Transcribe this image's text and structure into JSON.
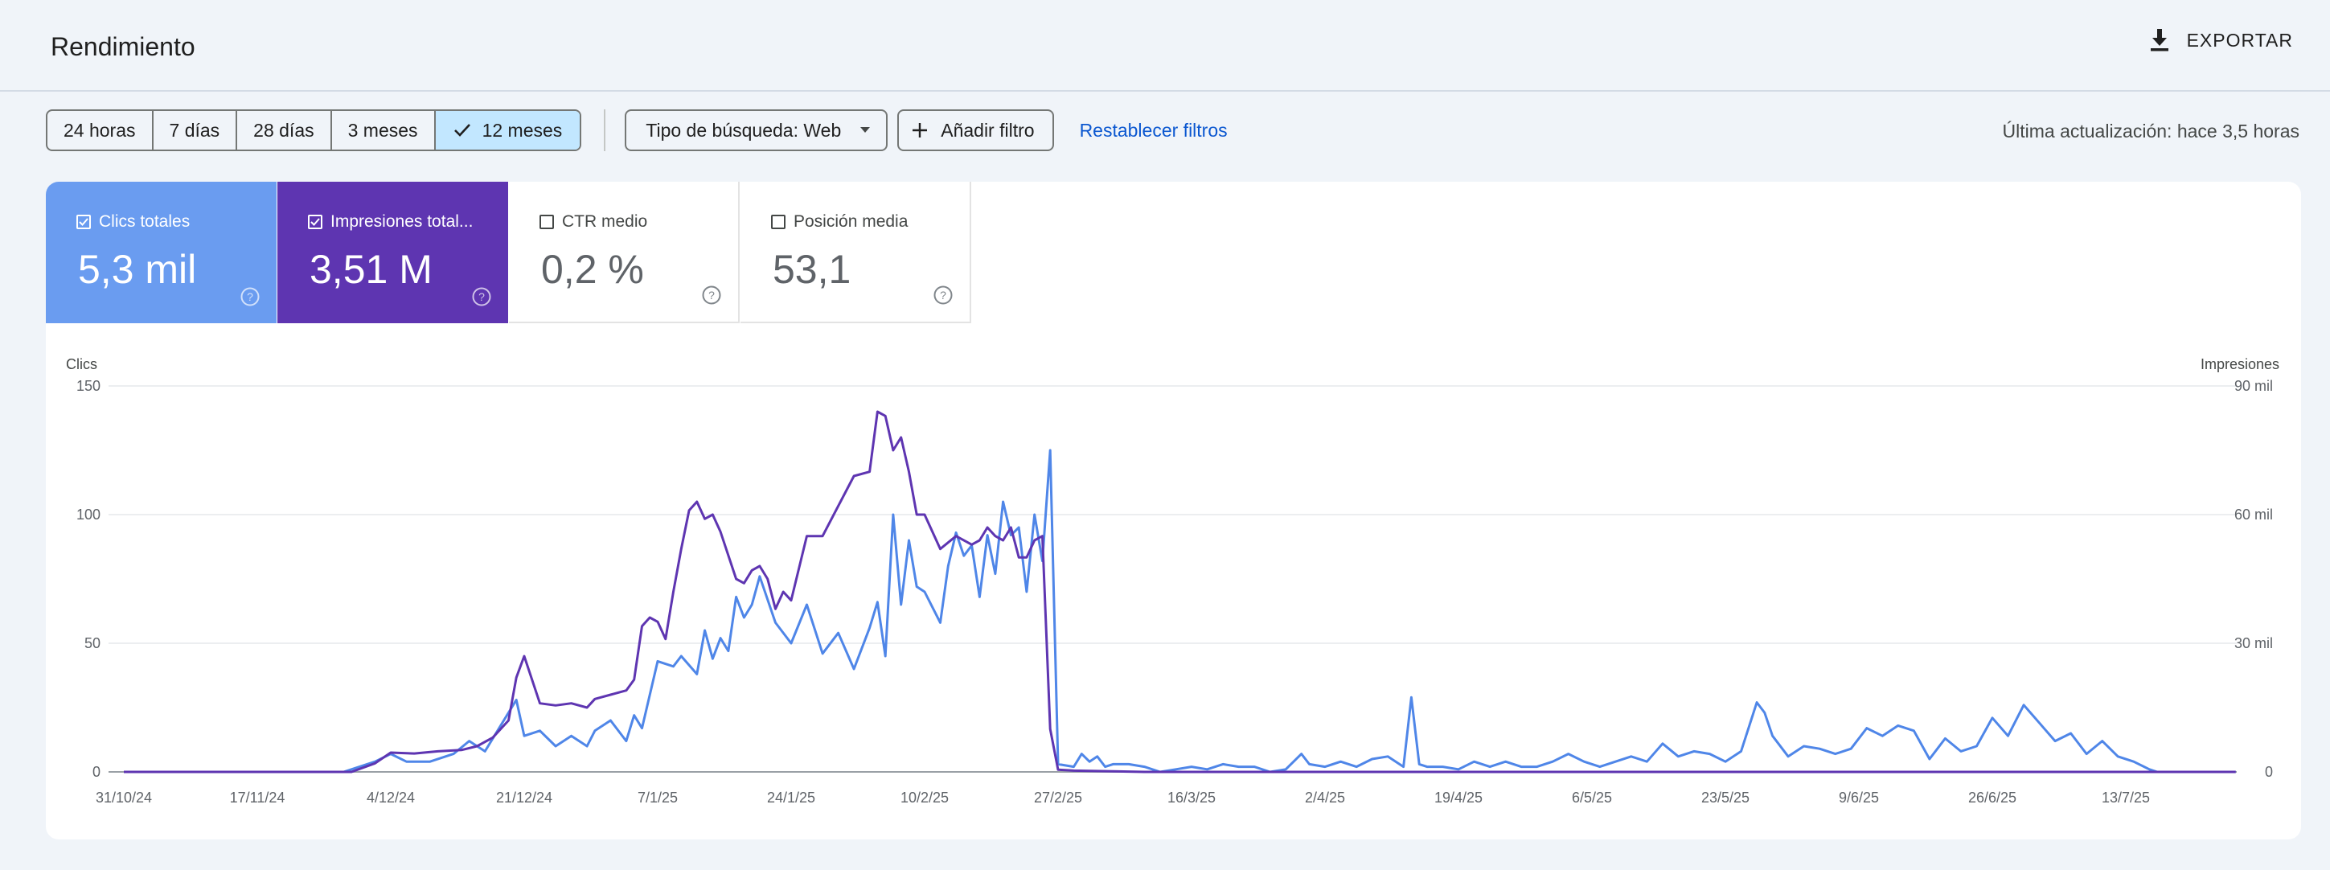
{
  "header": {
    "title": "Rendimiento",
    "export_label": "EXPORTAR"
  },
  "toolbar": {
    "date_ranges": [
      "24 horas",
      "7 días",
      "28 días",
      "3 meses",
      "12 meses"
    ],
    "selected_range": "12 meses",
    "search_type": "Tipo de búsqueda: Web",
    "add_filter": "Añadir filtro",
    "reset_filters": "Restablecer filtros",
    "last_update": "Última actualización: hace 3,5 horas"
  },
  "metrics": [
    {
      "label": "Clics totales",
      "value": "5,3 mil",
      "checked": true
    },
    {
      "label": "Impresiones total...",
      "value": "3,51 M",
      "checked": true
    },
    {
      "label": "CTR medio",
      "value": "0,2 %",
      "checked": false
    },
    {
      "label": "Posición media",
      "value": "53,1",
      "checked": false
    }
  ],
  "colors": {
    "clicks": "#4f86e8",
    "impressions": "#5e35b1",
    "accent_link": "#0b57d0",
    "selected_chip": "#c2e7ff"
  },
  "chart_data": {
    "type": "line",
    "left_axis_title": "Clics",
    "right_axis_title": "Impresiones",
    "left_ticks": [
      "150",
      "100",
      "50",
      "0"
    ],
    "right_ticks": [
      "90 mil",
      "60 mil",
      "30 mil",
      "0"
    ],
    "left_ylim": [
      0,
      150
    ],
    "right_ylim": [
      0,
      90000
    ],
    "x_tick_labels": [
      "31/10/24",
      "17/11/24",
      "4/12/24",
      "21/12/24",
      "7/1/25",
      "24/1/25",
      "10/2/25",
      "27/2/25",
      "16/3/25",
      "2/4/25",
      "19/4/25",
      "6/5/25",
      "23/5/25",
      "9/6/25",
      "26/6/25",
      "13/7/25"
    ],
    "grid": true,
    "series": [
      {
        "name": "Clics",
        "axis": "left",
        "color": "#4f86e8",
        "points": [
          [
            "31/10/24",
            0
          ],
          [
            "17/11/24",
            0
          ],
          [
            "28/11/24",
            0
          ],
          [
            "2/12/24",
            4
          ],
          [
            "4/12/24",
            7
          ],
          [
            "6/12/24",
            4
          ],
          [
            "9/12/24",
            4
          ],
          [
            "12/12/24",
            7
          ],
          [
            "14/12/24",
            12
          ],
          [
            "16/12/24",
            8
          ],
          [
            "18/12/24",
            18
          ],
          [
            "20/12/24",
            28
          ],
          [
            "21/12/24",
            14
          ],
          [
            "23/12/24",
            16
          ],
          [
            "25/12/24",
            10
          ],
          [
            "27/12/24",
            14
          ],
          [
            "29/12/24",
            10
          ],
          [
            "30/12/24",
            16
          ],
          [
            "1/1/25",
            20
          ],
          [
            "3/1/25",
            12
          ],
          [
            "4/1/25",
            22
          ],
          [
            "5/1/25",
            17
          ],
          [
            "7/1/25",
            43
          ],
          [
            "9/1/25",
            41
          ],
          [
            "10/1/25",
            45
          ],
          [
            "12/1/25",
            38
          ],
          [
            "13/1/25",
            55
          ],
          [
            "14/1/25",
            44
          ],
          [
            "15/1/25",
            52
          ],
          [
            "16/1/25",
            47
          ],
          [
            "17/1/25",
            68
          ],
          [
            "18/1/25",
            60
          ],
          [
            "19/1/25",
            65
          ],
          [
            "20/1/25",
            76
          ],
          [
            "22/1/25",
            58
          ],
          [
            "24/1/25",
            50
          ],
          [
            "26/1/25",
            65
          ],
          [
            "28/1/25",
            46
          ],
          [
            "30/1/25",
            54
          ],
          [
            "1/2/25",
            40
          ],
          [
            "3/2/25",
            56
          ],
          [
            "4/2/25",
            66
          ],
          [
            "5/2/25",
            45
          ],
          [
            "6/2/25",
            100
          ],
          [
            "7/2/25",
            65
          ],
          [
            "8/2/25",
            90
          ],
          [
            "9/2/25",
            72
          ],
          [
            "10/2/25",
            70
          ],
          [
            "12/2/25",
            58
          ],
          [
            "13/2/25",
            80
          ],
          [
            "14/2/25",
            93
          ],
          [
            "15/2/25",
            84
          ],
          [
            "16/2/25",
            88
          ],
          [
            "17/2/25",
            68
          ],
          [
            "18/2/25",
            92
          ],
          [
            "19/2/25",
            77
          ],
          [
            "20/2/25",
            105
          ],
          [
            "21/2/25",
            92
          ],
          [
            "22/2/25",
            95
          ],
          [
            "23/2/25",
            70
          ],
          [
            "24/2/25",
            100
          ],
          [
            "25/2/25",
            82
          ],
          [
            "26/2/25",
            125
          ],
          [
            "27/2/25",
            3
          ],
          [
            "1/3/25",
            2
          ],
          [
            "2/3/25",
            7
          ],
          [
            "3/3/25",
            4
          ],
          [
            "4/3/25",
            6
          ],
          [
            "5/3/25",
            2
          ],
          [
            "6/3/25",
            3
          ],
          [
            "8/3/25",
            3
          ],
          [
            "10/3/25",
            2
          ],
          [
            "12/3/25",
            0
          ],
          [
            "14/3/25",
            1
          ],
          [
            "16/3/25",
            2
          ],
          [
            "18/3/25",
            1
          ],
          [
            "20/3/25",
            3
          ],
          [
            "22/3/25",
            2
          ],
          [
            "24/3/25",
            2
          ],
          [
            "26/3/25",
            0
          ],
          [
            "28/3/25",
            1
          ],
          [
            "30/3/25",
            7
          ],
          [
            "31/3/25",
            3
          ],
          [
            "2/4/25",
            2
          ],
          [
            "4/4/25",
            4
          ],
          [
            "6/4/25",
            2
          ],
          [
            "8/4/25",
            5
          ],
          [
            "10/4/25",
            6
          ],
          [
            "12/4/25",
            2
          ],
          [
            "13/4/25",
            29
          ],
          [
            "14/4/25",
            3
          ],
          [
            "15/4/25",
            2
          ],
          [
            "17/4/25",
            2
          ],
          [
            "19/4/25",
            1
          ],
          [
            "21/4/25",
            4
          ],
          [
            "23/4/25",
            2
          ],
          [
            "25/4/25",
            4
          ],
          [
            "27/4/25",
            2
          ],
          [
            "29/4/25",
            2
          ],
          [
            "1/5/25",
            4
          ],
          [
            "3/5/25",
            7
          ],
          [
            "5/5/25",
            4
          ],
          [
            "7/5/25",
            2
          ],
          [
            "9/5/25",
            4
          ],
          [
            "11/5/25",
            6
          ],
          [
            "13/5/25",
            4
          ],
          [
            "15/5/25",
            11
          ],
          [
            "17/5/25",
            6
          ],
          [
            "19/5/25",
            8
          ],
          [
            "21/5/25",
            7
          ],
          [
            "23/5/25",
            4
          ],
          [
            "25/5/25",
            8
          ],
          [
            "27/5/25",
            27
          ],
          [
            "28/5/25",
            23
          ],
          [
            "29/5/25",
            14
          ],
          [
            "31/5/25",
            6
          ],
          [
            "2/6/25",
            10
          ],
          [
            "4/6/25",
            9
          ],
          [
            "6/6/25",
            7
          ],
          [
            "8/6/25",
            9
          ],
          [
            "10/6/25",
            17
          ],
          [
            "12/6/25",
            14
          ],
          [
            "14/6/25",
            18
          ],
          [
            "16/6/25",
            16
          ],
          [
            "18/6/25",
            5
          ],
          [
            "20/6/25",
            13
          ],
          [
            "22/6/25",
            8
          ],
          [
            "24/6/25",
            10
          ],
          [
            "26/6/25",
            21
          ],
          [
            "28/6/25",
            14
          ],
          [
            "30/6/25",
            26
          ],
          [
            "2/7/25",
            19
          ],
          [
            "4/7/25",
            12
          ],
          [
            "6/7/25",
            15
          ],
          [
            "8/7/25",
            7
          ],
          [
            "10/7/25",
            12
          ],
          [
            "12/7/25",
            6
          ],
          [
            "14/7/25",
            4
          ],
          [
            "16/7/25",
            1
          ],
          [
            "17/7/25",
            0
          ],
          [
            "27/7/25",
            0
          ]
        ]
      },
      {
        "name": "Impresiones",
        "axis": "right",
        "color": "#5e35b1",
        "points": [
          [
            "31/10/24",
            0
          ],
          [
            "17/11/24",
            0
          ],
          [
            "29/11/24",
            0
          ],
          [
            "2/12/24",
            2000
          ],
          [
            "4/12/24",
            4500
          ],
          [
            "7/12/24",
            4300
          ],
          [
            "10/12/24",
            4800
          ],
          [
            "13/12/24",
            5100
          ],
          [
            "15/12/24",
            6000
          ],
          [
            "17/12/24",
            8000
          ],
          [
            "19/12/24",
            12000
          ],
          [
            "20/12/24",
            22000
          ],
          [
            "21/12/24",
            27000
          ],
          [
            "23/12/24",
            16000
          ],
          [
            "25/12/24",
            15500
          ],
          [
            "27/12/24",
            16000
          ],
          [
            "29/12/24",
            15000
          ],
          [
            "30/12/24",
            17000
          ],
          [
            "1/1/25",
            18000
          ],
          [
            "3/1/25",
            19000
          ],
          [
            "4/1/25",
            21500
          ],
          [
            "5/1/25",
            34000
          ],
          [
            "6/1/25",
            36000
          ],
          [
            "7/1/25",
            35000
          ],
          [
            "8/1/25",
            31000
          ],
          [
            "9/1/25",
            42000
          ],
          [
            "10/1/25",
            52000
          ],
          [
            "11/1/25",
            61000
          ],
          [
            "12/1/25",
            63000
          ],
          [
            "13/1/25",
            59000
          ],
          [
            "14/1/25",
            60000
          ],
          [
            "15/1/25",
            56000
          ],
          [
            "17/1/25",
            45000
          ],
          [
            "18/1/25",
            44000
          ],
          [
            "19/1/25",
            47000
          ],
          [
            "20/1/25",
            48000
          ],
          [
            "21/1/25",
            45000
          ],
          [
            "22/1/25",
            38000
          ],
          [
            "23/1/25",
            42000
          ],
          [
            "24/1/25",
            40000
          ],
          [
            "26/1/25",
            55000
          ],
          [
            "28/1/25",
            55000
          ],
          [
            "30/1/25",
            62000
          ],
          [
            "1/2/25",
            69000
          ],
          [
            "3/2/25",
            70000
          ],
          [
            "4/2/25",
            84000
          ],
          [
            "5/2/25",
            83000
          ],
          [
            "6/2/25",
            75000
          ],
          [
            "7/2/25",
            78000
          ],
          [
            "8/2/25",
            70000
          ],
          [
            "9/2/25",
            60000
          ],
          [
            "10/2/25",
            60000
          ],
          [
            "12/2/25",
            52000
          ],
          [
            "14/2/25",
            55000
          ],
          [
            "16/2/25",
            53000
          ],
          [
            "17/2/25",
            54000
          ],
          [
            "18/2/25",
            57000
          ],
          [
            "19/2/25",
            55000
          ],
          [
            "20/2/25",
            54000
          ],
          [
            "21/2/25",
            57000
          ],
          [
            "22/2/25",
            50000
          ],
          [
            "23/2/25",
            50000
          ],
          [
            "24/2/25",
            54000
          ],
          [
            "25/2/25",
            55000
          ],
          [
            "26/2/25",
            10000
          ],
          [
            "27/2/25",
            500
          ],
          [
            "1/3/25",
            300
          ],
          [
            "10/3/25",
            0
          ],
          [
            "16/3/25",
            0
          ],
          [
            "27/7/25",
            0
          ]
        ]
      }
    ]
  }
}
